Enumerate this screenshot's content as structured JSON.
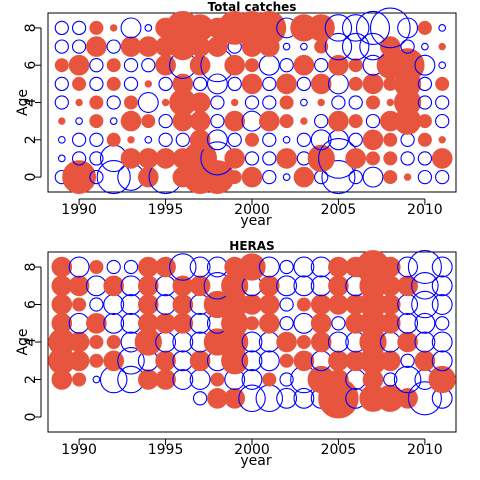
{
  "chart_data": [
    {
      "type": "scatter",
      "subtype": "bubble-residuals",
      "title": "Total catches",
      "xlabel": "year",
      "ylabel": "Age",
      "xlim": [
        1988.2,
        2011.8
      ],
      "ylim": [
        -0.8,
        8.8
      ],
      "xticks": [
        1990,
        1995,
        2000,
        2005,
        2010
      ],
      "yticks": [
        0,
        2,
        4,
        6,
        8
      ],
      "years": [
        1989,
        1990,
        1991,
        1992,
        1993,
        1994,
        1995,
        1996,
        1997,
        1998,
        1999,
        2000,
        2001,
        2002,
        2003,
        2004,
        2005,
        2006,
        2007,
        2008,
        2009,
        2010,
        2011
      ],
      "ages": [
        0,
        1,
        2,
        3,
        4,
        5,
        6,
        7,
        8
      ],
      "colors": {
        "positive": "#e8553e",
        "negative": "#0000ff"
      },
      "grid": false,
      "legend": "none",
      "residuals": [
        [
          -2,
          5,
          -2,
          -5,
          -4,
          3,
          -5,
          3,
          5,
          5,
          2,
          3,
          -2,
          -1,
          3,
          -2,
          -5,
          -2,
          -3,
          2,
          1,
          -2,
          -2
        ],
        [
          -1,
          -2,
          -2,
          -4,
          3,
          3,
          3,
          3,
          5,
          -5,
          3,
          -2,
          -2,
          3,
          -2,
          4,
          -6,
          3,
          2,
          2,
          -2,
          -2,
          3
        ],
        [
          -1,
          -2,
          -2,
          2,
          1,
          -1,
          -2,
          -2,
          3,
          -3,
          -2,
          2,
          -2,
          -1,
          -2,
          -3,
          -3,
          -2,
          3,
          2,
          -2,
          2,
          1
        ],
        [
          1,
          -1,
          2,
          -1,
          3,
          2,
          -2,
          3,
          3,
          -2,
          3,
          -3,
          3,
          2,
          1,
          -2,
          3,
          2,
          -2,
          3,
          4,
          2,
          -2
        ],
        [
          -2,
          1,
          2,
          -2,
          2,
          -3,
          1,
          4,
          3,
          -2,
          1,
          -2,
          -2,
          2,
          -1,
          1,
          -2,
          -2,
          2,
          1,
          4,
          -2,
          -2
        ],
        [
          -2,
          2,
          -2,
          2,
          -2,
          1,
          -2,
          3,
          -2,
          -3,
          -2,
          3,
          -2,
          3,
          -2,
          3,
          -3,
          2,
          3,
          2,
          4,
          -2,
          2
        ],
        [
          2,
          3,
          -2,
          2,
          -2,
          -2,
          3,
          -4,
          3,
          -5,
          3,
          2,
          -3,
          -2,
          3,
          -2,
          3,
          2,
          -3,
          4,
          5,
          -3,
          -1
        ],
        [
          -2,
          -2,
          3,
          -2,
          3,
          3,
          3,
          4,
          3,
          3,
          -2,
          3,
          3,
          -1,
          -1,
          2,
          -4,
          -4,
          -4,
          3,
          -2,
          -1,
          1
        ],
        [
          -2,
          -2,
          2,
          1,
          -3,
          -1,
          3,
          5,
          4,
          3,
          5,
          5,
          5,
          -3,
          4,
          4,
          -4,
          -4,
          -5,
          -6,
          -3,
          2,
          -1
        ]
      ]
    },
    {
      "type": "scatter",
      "subtype": "bubble-residuals",
      "title": "HERAS",
      "xlabel": "year",
      "ylabel": "Age",
      "xlim": [
        1988.2,
        2011.8
      ],
      "ylim": [
        -0.8,
        8.8
      ],
      "xticks": [
        1990,
        1995,
        2000,
        2005,
        2010
      ],
      "yticks": [
        0,
        2,
        4,
        6,
        8
      ],
      "years": [
        1989,
        1990,
        1991,
        1992,
        1993,
        1994,
        1995,
        1996,
        1997,
        1998,
        1999,
        2000,
        2001,
        2002,
        2003,
        2004,
        2005,
        2006,
        2007,
        2008,
        2009,
        2010,
        2011
      ],
      "ages": [
        0,
        1,
        2,
        3,
        4,
        5,
        6,
        7,
        8
      ],
      "colors": {
        "positive": "#e8553e",
        "negative": "#0000ff"
      },
      "grid": false,
      "legend": "none",
      "residuals": [
        [
          0,
          0,
          0,
          0,
          0,
          0,
          0,
          0,
          0,
          0,
          0,
          0,
          0,
          0,
          0,
          0,
          0,
          0,
          0,
          0,
          0,
          0,
          0
        ],
        [
          0,
          0,
          0,
          0,
          0,
          0,
          0,
          0,
          -2,
          3,
          3,
          -4,
          -4,
          -3,
          -3,
          -3,
          6,
          -3,
          4,
          4,
          3,
          -5,
          -3
        ],
        [
          3,
          2,
          -1,
          -4,
          -4,
          3,
          3,
          -3,
          -3,
          2,
          -3,
          -3,
          2,
          -2,
          -4,
          4,
          3,
          -3,
          3,
          -2,
          -4,
          -3,
          4
        ],
        [
          4,
          3,
          2,
          3,
          -4,
          -3,
          3,
          -3,
          3,
          -3,
          4,
          -3,
          -3,
          2,
          3,
          -3,
          3,
          3,
          4,
          3,
          -2,
          3,
          -3
        ],
        [
          4,
          3,
          2,
          2,
          -3,
          4,
          -3,
          -3,
          -3,
          4,
          4,
          -3,
          -3,
          3,
          2,
          3,
          -3,
          -3,
          4,
          -3,
          3,
          -3,
          -3
        ],
        [
          3,
          -3,
          3,
          -3,
          -3,
          3,
          3,
          3,
          -3,
          -3,
          4,
          2,
          3,
          -2,
          -3,
          3,
          -2,
          3,
          4,
          3,
          -3,
          -3,
          -2
        ],
        [
          3,
          2,
          -2,
          -3,
          -3,
          3,
          -3,
          3,
          -3,
          4,
          4,
          3,
          3,
          -2,
          2,
          3,
          3,
          3,
          4,
          3,
          -3,
          -4,
          -3
        ],
        [
          3,
          3,
          -3,
          3,
          -3,
          3,
          -3,
          3,
          3,
          -4,
          4,
          -3,
          3,
          -3,
          -3,
          -3,
          3,
          -3,
          4,
          3,
          3,
          -4,
          -3
        ],
        [
          3,
          -3,
          2,
          -2,
          -2,
          3,
          3,
          -4,
          -3,
          -3,
          3,
          4,
          -3,
          -2,
          -3,
          -3,
          3,
          3,
          5,
          3,
          -3,
          -5,
          -3
        ]
      ]
    }
  ]
}
